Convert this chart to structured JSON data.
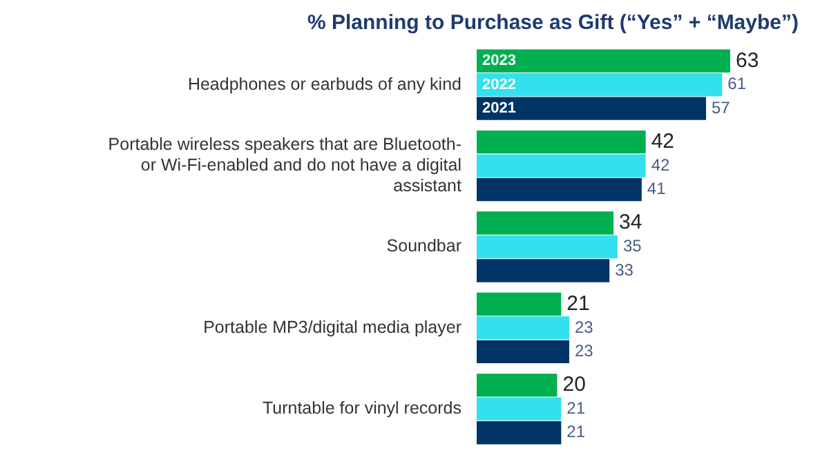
{
  "chart_data": {
    "type": "bar",
    "orientation": "horizontal",
    "title": "% Planning to Purchase as Gift (“Yes” + “Maybe”)",
    "categories": [
      "Headphones or earbuds of any kind",
      "Portable wireless speakers that are Bluetooth- or Wi-Fi-enabled and do not have a digital assistant",
      "Soundbar",
      "Portable MP3/digital media player",
      "Turntable for vinyl records"
    ],
    "series": [
      {
        "name": "2023",
        "color": "#00b050",
        "values": [
          63,
          42,
          34,
          21,
          20
        ]
      },
      {
        "name": "2022",
        "color": "#33e0ee",
        "values": [
          61,
          42,
          35,
          23,
          21
        ]
      },
      {
        "name": "2021",
        "color": "#003366",
        "values": [
          57,
          41,
          33,
          23,
          21
        ]
      }
    ],
    "data_labels": true,
    "grid": false,
    "legend": false
  }
}
